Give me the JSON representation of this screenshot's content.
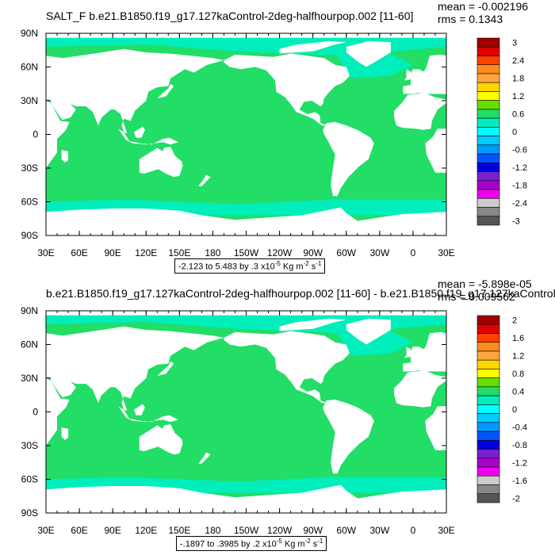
{
  "chart_data": [
    {
      "type": "heatmap",
      "title": "SALT_F b.e21.B1850.f19_g17.127kaControl-2deg-halfhourpop.002 [11-60]",
      "stats": {
        "mean": "mean = -0.002196",
        "rms": "rms = 0.1343"
      },
      "x_ticks": [
        "30E",
        "60E",
        "90E",
        "120E",
        "150E",
        "180",
        "150W",
        "120W",
        "90W",
        "60W",
        "30W",
        "0",
        "30E"
      ],
      "y_ticks": [
        "90N",
        "60N",
        "30N",
        "0",
        "30S",
        "60S",
        "90S"
      ],
      "colorbar_labels": [
        "3",
        "2.4",
        "1.8",
        "1.2",
        "0.6",
        "0",
        "-0.6",
        "-1.2",
        "-1.8",
        "-2.4",
        "-3"
      ],
      "colorbar_colors": [
        "#a00000",
        "#e00000",
        "#ff4000",
        "#ff8c1a",
        "#ffa640",
        "#ffd700",
        "#ffff00",
        "#66dd00",
        "#22dd66",
        "#00eebb",
        "#00ffff",
        "#00ccff",
        "#0099ff",
        "#0055ff",
        "#0000dd",
        "#7722cc",
        "#aa00cc",
        "#ee00ee",
        "#cccccc",
        "#888888",
        "#555555"
      ],
      "range_text": {
        "prefix": "-2.123 to 5.483 by .3 x10",
        "exp1": "-5",
        "units": " Kg m",
        "exp2": "-2",
        "units2": " s",
        "exp3": "-1"
      },
      "ocean_color": "#22dd66",
      "polar_color": "#00eebb"
    },
    {
      "type": "heatmap",
      "title": "b.e21.B1850.f19_g17.127kaControl-2deg-halfhourpop.002 [11-60] - b.e21.B1850.f19_g17.127kaControl-",
      "stats": {
        "mean": "mean = -5.898e-05",
        "rms": "rms = 0.009562"
      },
      "x_ticks": [
        "30E",
        "60E",
        "90E",
        "120E",
        "150E",
        "180",
        "150W",
        "120W",
        "90W",
        "60W",
        "30W",
        "0",
        "30E"
      ],
      "y_ticks": [
        "90N",
        "60N",
        "30N",
        "0",
        "30S",
        "60S",
        "90S"
      ],
      "colorbar_labels": [
        "2",
        "1.6",
        "1.2",
        "0.8",
        "0.4",
        "0",
        "-0.4",
        "-0.8",
        "-1.2",
        "-1.6",
        "-2"
      ],
      "colorbar_colors": [
        "#a00000",
        "#e00000",
        "#ff4000",
        "#ff8c1a",
        "#ffa640",
        "#ffd700",
        "#ffff00",
        "#66dd00",
        "#22dd66",
        "#00eebb",
        "#00ffff",
        "#00ccff",
        "#0099ff",
        "#0055ff",
        "#0000dd",
        "#7722cc",
        "#aa00cc",
        "#ee00ee",
        "#cccccc",
        "#888888",
        "#555555"
      ],
      "range_text": {
        "prefix": "-.1897 to .3985 by .2 x10",
        "exp1": "-5",
        "units": " Kg m",
        "exp2": "-2",
        "units2": " s",
        "exp3": "-1"
      },
      "ocean_color": "#22dd66",
      "polar_color": "#00eebb"
    }
  ]
}
